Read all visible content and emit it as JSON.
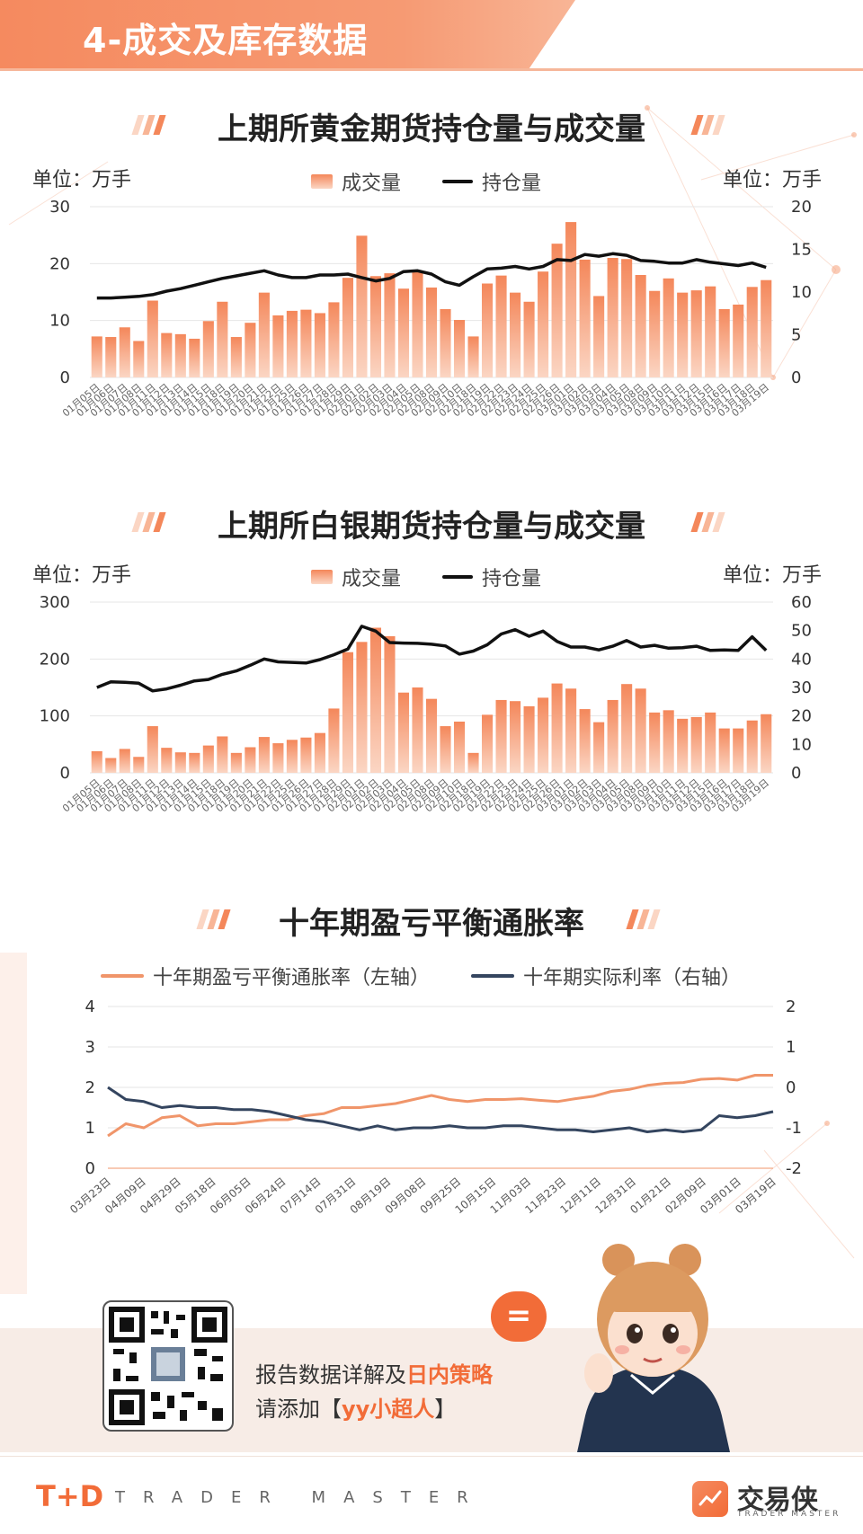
{
  "header": {
    "title": "4-成交及库存数据"
  },
  "charts": [
    {
      "title": "上期所黄金期货持仓量与成交量",
      "unit_left": "单位：万手",
      "unit_right": "单位：万手",
      "legend_bar": "成交量",
      "legend_line": "持仓量"
    },
    {
      "title": "上期所白银期货持仓量与成交量",
      "unit_left": "单位：万手",
      "unit_right": "单位：万手",
      "legend_bar": "成交量",
      "legend_line": "持仓量"
    },
    {
      "title": "十年期盈亏平衡通胀率",
      "legend_a": "十年期盈亏平衡通胀率（左轴）",
      "legend_b": "十年期实际利率（右轴）"
    }
  ],
  "colors": {
    "accent": "#f26c38",
    "bar_top": "#f4875a",
    "bar_bottom": "#fbd6c4",
    "line": "#111111",
    "breakeven": "#f0956a",
    "real_rate": "#34455f"
  },
  "promo": {
    "line1_prefix": "报告数据详解及",
    "line1_highlight": "日内策略",
    "line2_prefix": "请添加【",
    "line2_highlight": "yy小超人",
    "line2_suffix": "】"
  },
  "footer": {
    "logo_mark": "T+D",
    "logo_text": "TRADER MASTER",
    "brand_name": "交易侠",
    "brand_sub": "TRADER MASTER"
  },
  "chart_data": [
    {
      "type": "bar",
      "title": "上期所黄金期货持仓量与成交量",
      "categories": [
        "01月05日",
        "01月06日",
        "01月07日",
        "01月08日",
        "01月11日",
        "01月12日",
        "01月13日",
        "01月14日",
        "01月15日",
        "01月18日",
        "01月19日",
        "01月20日",
        "01月21日",
        "01月22日",
        "01月25日",
        "01月26日",
        "01月27日",
        "01月28日",
        "01月29日",
        "02月01日",
        "02月02日",
        "02月03日",
        "02月04日",
        "02月05日",
        "02月08日",
        "02月09日",
        "02月10日",
        "02月18日",
        "02月19日",
        "02月22日",
        "02月23日",
        "02月24日",
        "02月25日",
        "02月26日",
        "03月01日",
        "03月02日",
        "03月03日",
        "03月04日",
        "03月05日",
        "03月08日",
        "03月09日",
        "03月10日",
        "03月11日",
        "03月12日",
        "03月15日",
        "03月16日",
        "03月17日",
        "03月18日",
        "03月19日"
      ],
      "x_tick_labels_shown": [
        "01月05日",
        "01月06日",
        "01月07日",
        "01月08日",
        "01月11日",
        "01月12日",
        "01月13日",
        "01月14日",
        "01月15日",
        "01月18日",
        "01月19日",
        "01月20日",
        "01月21日",
        "01月22日",
        "01月25日",
        "01月26日",
        "01月27日",
        "01月28日",
        "01月29日",
        "02月01日",
        "02月02日",
        "02月03日",
        "02月04日",
        "02月05日",
        "02月08日",
        "02月09日",
        "02月10日",
        "02月18日",
        "02月19日",
        "02月22日",
        "02月23日",
        "02月24日",
        "02月25日",
        "02月26日",
        "03月01日",
        "03月02日",
        "03月03日",
        "03月04日",
        "03月05日",
        "03月08日",
        "03月09日",
        "03月10日",
        "03月11日",
        "03月12日",
        "03月15日",
        "03月16日",
        "03月17日",
        "03月18日",
        "03月19日"
      ],
      "series": [
        {
          "name": "成交量",
          "axis": "left",
          "kind": "bar",
          "values": [
            7.2,
            7.1,
            8.8,
            6.4,
            13.5,
            7.8,
            7.6,
            6.8,
            9.9,
            13.3,
            7.1,
            9.6,
            14.9,
            10.9,
            11.7,
            11.9,
            11.3,
            13.2,
            17.5,
            24.9,
            17.8,
            18.3,
            15.6,
            18.5,
            15.8,
            12.0,
            10.1,
            7.2,
            16.5,
            17.9,
            14.9,
            13.3,
            18.6,
            23.5,
            27.3,
            20.7,
            14.3,
            21.0,
            20.8,
            18.0,
            15.2,
            17.4,
            14.9,
            15.3,
            16.0,
            12.0,
            12.8,
            15.9,
            17.1
          ]
        },
        {
          "name": "持仓量",
          "axis": "right",
          "kind": "line",
          "values": [
            9.3,
            9.3,
            9.4,
            9.5,
            9.7,
            10.1,
            10.4,
            10.8,
            11.2,
            11.6,
            11.9,
            12.2,
            12.5,
            12.0,
            11.7,
            11.7,
            12.0,
            12.0,
            12.1,
            11.7,
            11.3,
            11.6,
            12.4,
            12.5,
            12.1,
            11.2,
            10.8,
            11.8,
            12.7,
            12.8,
            13.0,
            12.7,
            13.0,
            13.8,
            13.7,
            14.4,
            14.2,
            14.5,
            14.3,
            13.7,
            13.6,
            13.4,
            13.4,
            13.8,
            13.5,
            13.3,
            13.1,
            13.4,
            12.9
          ]
        }
      ],
      "ylim_left": [
        0,
        30
      ],
      "yticks_left": [
        0,
        10,
        20,
        30
      ],
      "ylim_right": [
        0,
        20
      ],
      "yticks_right": [
        0,
        5,
        10,
        15,
        20
      ],
      "ylabel_left": "单位：万手",
      "ylabel_right": "单位：万手",
      "legend": "top-center",
      "grid": true
    },
    {
      "type": "bar",
      "title": "上期所白银期货持仓量与成交量",
      "categories": [
        "01月05日",
        "01月06日",
        "01月07日",
        "01月08日",
        "01月11日",
        "01月12日",
        "01月13日",
        "01月14日",
        "01月15日",
        "01月18日",
        "01月19日",
        "01月20日",
        "01月21日",
        "01月22日",
        "01月25日",
        "01月26日",
        "01月27日",
        "01月28日",
        "01月29日",
        "02月01日",
        "02月02日",
        "02月03日",
        "02月04日",
        "02月05日",
        "02月08日",
        "02月09日",
        "02月10日",
        "02月18日",
        "02月19日",
        "02月22日",
        "02月23日",
        "02月24日",
        "02月25日",
        "02月26日",
        "03月01日",
        "03月02日",
        "03月03日",
        "03月04日",
        "03月05日",
        "03月08日",
        "03月09日",
        "03月10日",
        "03月11日",
        "03月12日",
        "03月15日",
        "03月16日",
        "03月17日",
        "03月18日",
        "03月19日"
      ],
      "series": [
        {
          "name": "成交量",
          "axis": "left",
          "kind": "bar",
          "values": [
            38,
            26,
            42,
            28,
            82,
            44,
            36,
            35,
            48,
            64,
            35,
            45,
            63,
            52,
            58,
            62,
            70,
            113,
            212,
            230,
            255,
            240,
            141,
            150,
            130,
            82,
            90,
            35,
            102,
            128,
            126,
            117,
            132,
            157,
            148,
            112,
            89,
            128,
            156,
            148,
            106,
            110,
            95,
            98,
            106,
            78,
            78,
            92,
            103
          ]
        },
        {
          "name": "持仓量",
          "axis": "right",
          "kind": "line",
          "values": [
            30,
            32,
            31.8,
            31.5,
            28.8,
            29.5,
            30.8,
            32.3,
            32.8,
            34.6,
            35.8,
            37.8,
            40,
            39,
            38.8,
            38.6,
            39.8,
            41.5,
            43.5,
            51.5,
            49.8,
            45.8,
            45.6,
            45.5,
            45.2,
            44.6,
            41.7,
            42.8,
            45,
            48.8,
            50.3,
            48,
            49.8,
            46.2,
            44.2,
            44.2,
            43.2,
            44.5,
            46.5,
            44.2,
            44.8,
            43.8,
            44,
            44.5,
            43,
            43.2,
            43,
            47.8,
            43
          ]
        }
      ],
      "ylim_left": [
        0,
        300
      ],
      "yticks_left": [
        0,
        100,
        200,
        300
      ],
      "ylim_right": [
        0,
        60
      ],
      "yticks_right": [
        0,
        10,
        20,
        30,
        40,
        50,
        60
      ],
      "ylabel_left": "单位：万手",
      "ylabel_right": "单位：万手",
      "legend": "top-center",
      "grid": true
    },
    {
      "type": "line",
      "title": "十年期盈亏平衡通胀率",
      "x_tick_labels": [
        "03月23日",
        "04月09日",
        "04月29日",
        "05月18日",
        "06月05日",
        "06月24日",
        "07月14日",
        "07月31日",
        "08月19日",
        "09月08日",
        "09月25日",
        "10月15日",
        "11月03日",
        "11月23日",
        "12月11日",
        "12月31日",
        "01月21日",
        "02月09日",
        "03月01日",
        "03月19日"
      ],
      "series": [
        {
          "name": "十年期盈亏平衡通胀率（左轴）",
          "axis": "left",
          "values": [
            0.8,
            1.1,
            1.0,
            1.25,
            1.3,
            1.05,
            1.1,
            1.1,
            1.15,
            1.2,
            1.2,
            1.3,
            1.35,
            1.5,
            1.5,
            1.55,
            1.6,
            1.7,
            1.8,
            1.7,
            1.65,
            1.7,
            1.7,
            1.72,
            1.68,
            1.65,
            1.72,
            1.78,
            1.9,
            1.95,
            2.05,
            2.1,
            2.12,
            2.2,
            2.22,
            2.18,
            2.3,
            2.3
          ]
        },
        {
          "name": "十年期实际利率（右轴）",
          "axis": "right",
          "values": [
            0.0,
            -0.3,
            -0.35,
            -0.5,
            -0.45,
            -0.5,
            -0.5,
            -0.55,
            -0.55,
            -0.6,
            -0.7,
            -0.8,
            -0.85,
            -0.95,
            -1.05,
            -0.95,
            -1.05,
            -1.0,
            -1.0,
            -0.95,
            -1.0,
            -1.0,
            -0.95,
            -0.95,
            -1.0,
            -1.05,
            -1.05,
            -1.1,
            -1.05,
            -1.0,
            -1.1,
            -1.05,
            -1.1,
            -1.05,
            -0.7,
            -0.75,
            -0.7,
            -0.6
          ]
        }
      ],
      "ylim_left": [
        0,
        4
      ],
      "yticks_left": [
        0,
        1,
        2,
        3,
        4
      ],
      "ylim_right": [
        -2,
        2
      ],
      "yticks_right": [
        -2,
        -1,
        0,
        1,
        2
      ],
      "legend": "top-center",
      "grid": true
    }
  ]
}
